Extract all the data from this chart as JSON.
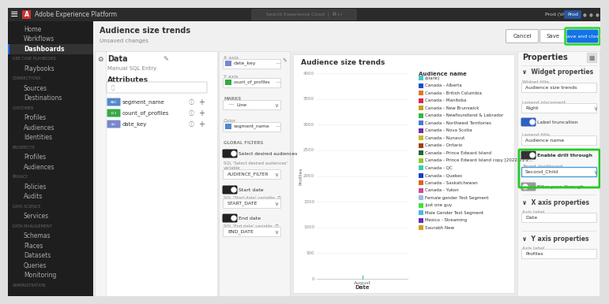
{
  "title": "Adobe Experience Platform",
  "nav_bg": "#1e1e1e",
  "active_nav": "Dashboards",
  "topbar_bg": "#2c2c2c",
  "header_text": "Audience size trends",
  "sub_header": "Unsaved changes",
  "data_panel_title": "Data",
  "data_subtitle": "Manual SQL Entry",
  "attributes_title": "Attributes",
  "attributes": [
    {
      "name": "segment_name",
      "type": "ABC",
      "color": "#5588cc"
    },
    {
      "name": "count_of_profiles",
      "type": "123",
      "color": "#33aa44"
    },
    {
      "name": "date_key",
      "type": "tbl",
      "color": "#7788cc"
    }
  ],
  "mid_xaxis_label": "X axis",
  "mid_xaxis_value": "date_key",
  "mid_yaxis_label": "Y axis",
  "mid_yaxis_value": "count_of_profiles",
  "mid_marks_label": "MARKS",
  "mid_marks_value": "Line",
  "mid_color_label": "Color",
  "mid_color_value": "segment_name",
  "mid_global_filters": "GLOBAL FILTERS",
  "mid_select_label": "Select desired audiences",
  "mid_sql_select": "SQL 'Select desired audiences' variable",
  "mid_audience_filter": "AUDIENCE_FILTER",
  "mid_start_date": "Start date",
  "mid_sql_start": "SQL 'Start date' variable",
  "mid_start_date_var": "START_DATE",
  "mid_end_date": "End date",
  "mid_sql_end": "SQL 'End date' variable",
  "mid_end_date_var": "END_DATE",
  "chart_title": "Audience size trends",
  "chart_ylabel": "Profiles",
  "chart_xlabel": "Date",
  "chart_xtick": "August",
  "chart_yticks": [
    0,
    500,
    1000,
    1500,
    2000,
    2500,
    3000,
    3500,
    4000
  ],
  "legend_title": "Audience name",
  "legend_items": [
    {
      "label": "(blank)",
      "color": "#4dc8c8"
    },
    {
      "label": "Canada - Alberta",
      "color": "#1a4fcc"
    },
    {
      "label": "Canada - British Columbia",
      "color": "#e07820"
    },
    {
      "label": "Canada - Manitoba",
      "color": "#e0204a"
    },
    {
      "label": "Canada - New Brunswick",
      "color": "#c8a020"
    },
    {
      "label": "Canada - Newfoundland & Labrador",
      "color": "#30b840"
    },
    {
      "label": "Canada - Northwest Territories",
      "color": "#4a78e0"
    },
    {
      "label": "Canada - Nova Scotia",
      "color": "#7030a0"
    },
    {
      "label": "Canada - Nunavut",
      "color": "#c8b830"
    },
    {
      "label": "Canada - Ontario",
      "color": "#a04010"
    },
    {
      "label": "Canada - Prince Edward Island",
      "color": "#206830"
    },
    {
      "label": "Canada - Prince Edward Island copy [2022-01-20T20:22:49.7042]",
      "color": "#90c830"
    },
    {
      "label": "Canada - QC",
      "color": "#40c8b8"
    },
    {
      "label": "Canada - Quebec",
      "color": "#1a3ccc"
    },
    {
      "label": "Canada - Saskatchewan",
      "color": "#e06020"
    },
    {
      "label": "Canada - Yukon",
      "color": "#d04890"
    },
    {
      "label": "Female gender Test Segment",
      "color": "#a0b8e0"
    },
    {
      "label": "Just one guy",
      "color": "#40e040"
    },
    {
      "label": "Male Gender Test Segment",
      "color": "#40c0e0"
    },
    {
      "label": "Mexico - Streaming",
      "color": "#6030b0"
    },
    {
      "label": "Saurabh New",
      "color": "#d0a020"
    }
  ],
  "properties_title": "Properties",
  "widget_props_title": "Widget properties",
  "widget_title_label": "Widget title",
  "widget_title_value": "Audience size trends",
  "legend_placement_label": "Legend placement",
  "legend_placement_value": "Right",
  "label_truncation_label": "Label truncation",
  "legend_title_label": "Legend title",
  "legend_title_value": "Audience name",
  "drill_through_label": "Enable drill through",
  "target_dashboard_label": "Target dashboard",
  "target_dashboard_value": "Second_Child",
  "filter_passthrough_label": "Filter pass-through",
  "x_axis_props_label": "X axis properties",
  "x_axis_field_label": "Axis label",
  "x_axis_field": "Date",
  "y_axis_props_label": "Y axis properties",
  "y_axis_field_label": "Axis label",
  "y_axis_field": "Profiles",
  "btn_cancel": "Cancel",
  "btn_save": "Save",
  "btn_save_close": "Save and close",
  "btn_save_close_color": "#1473e6",
  "topbar_right_text": "Prod (VA7)",
  "nav_items": [
    {
      "label": "Home",
      "active": false,
      "section": false
    },
    {
      "label": "Workflows",
      "active": false,
      "section": false
    },
    {
      "label": "Dashboards",
      "active": true,
      "section": false
    },
    {
      "label": "USE CASE PLAYBOOKS",
      "active": false,
      "section": true
    },
    {
      "label": "Playbooks",
      "active": false,
      "section": false
    },
    {
      "label": "CONNECTIONS",
      "active": false,
      "section": true
    },
    {
      "label": "Sources",
      "active": false,
      "section": false
    },
    {
      "label": "Destinations",
      "active": false,
      "section": false
    },
    {
      "label": "CUSTOMER",
      "active": false,
      "section": true
    },
    {
      "label": "Profiles",
      "active": false,
      "section": false
    },
    {
      "label": "Audiences",
      "active": false,
      "section": false
    },
    {
      "label": "Identities",
      "active": false,
      "section": false
    },
    {
      "label": "PROSPECTS",
      "active": false,
      "section": true
    },
    {
      "label": "Profiles",
      "active": false,
      "section": false
    },
    {
      "label": "Audiences",
      "active": false,
      "section": false
    },
    {
      "label": "PRIVACY",
      "active": false,
      "section": true
    },
    {
      "label": "Policies",
      "active": false,
      "section": false
    },
    {
      "label": "Audits",
      "active": false,
      "section": false
    },
    {
      "label": "DATA SCIENCE",
      "active": false,
      "section": true
    },
    {
      "label": "Services",
      "active": false,
      "section": false
    },
    {
      "label": "DATA MANAGEMENT",
      "active": false,
      "section": true
    },
    {
      "label": "Schemas",
      "active": false,
      "section": false
    },
    {
      "label": "Places",
      "active": false,
      "section": false
    },
    {
      "label": "Datasets",
      "active": false,
      "section": false
    },
    {
      "label": "Queries",
      "active": false,
      "section": false
    },
    {
      "label": "Monitoring",
      "active": false,
      "section": false
    },
    {
      "label": "ADMINISTRATION",
      "active": false,
      "section": true
    }
  ]
}
